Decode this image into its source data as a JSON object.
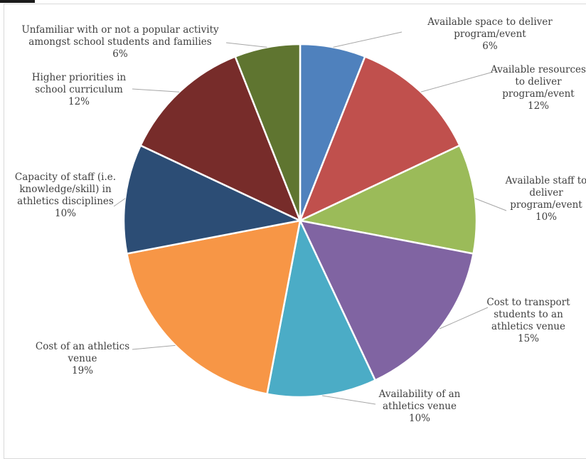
{
  "chart_data": {
    "type": "pie",
    "slices": [
      {
        "label": [
          "Available space to deliver",
          "program/event"
        ],
        "percent_label": "6%",
        "value": 6,
        "color": "#4f81bd"
      },
      {
        "label": [
          "Available resources",
          "to deliver",
          "program/event"
        ],
        "percent_label": "12%",
        "value": 12,
        "color": "#c0504d"
      },
      {
        "label": [
          "Available staff to",
          "deliver",
          "program/event"
        ],
        "percent_label": "10%",
        "value": 10,
        "color": "#9bbb59"
      },
      {
        "label": [
          "Cost to transport",
          "students to an",
          "athletics venue"
        ],
        "percent_label": "15%",
        "value": 15,
        "color": "#8064a2"
      },
      {
        "label": [
          "Availability of an",
          "athletics venue"
        ],
        "percent_label": "10%",
        "value": 10,
        "color": "#4bacc6"
      },
      {
        "label": [
          "Cost of an athletics",
          "venue"
        ],
        "percent_label": "19%",
        "value": 19,
        "color": "#f79646"
      },
      {
        "label": [
          "Capacity of staff (i.e.",
          "knowledge/skill) in",
          "athletics disciplines"
        ],
        "percent_label": "10%",
        "value": 10,
        "color": "#2c4d75"
      },
      {
        "label": [
          "Higher priorities in",
          "school curriculum"
        ],
        "percent_label": "12%",
        "value": 12,
        "color": "#772c2a"
      },
      {
        "label": [
          "Unfamiliar with or not a popular activity",
          "amongst school students and families"
        ],
        "percent_label": "6%",
        "value": 6,
        "color": "#5f7530"
      }
    ]
  }
}
